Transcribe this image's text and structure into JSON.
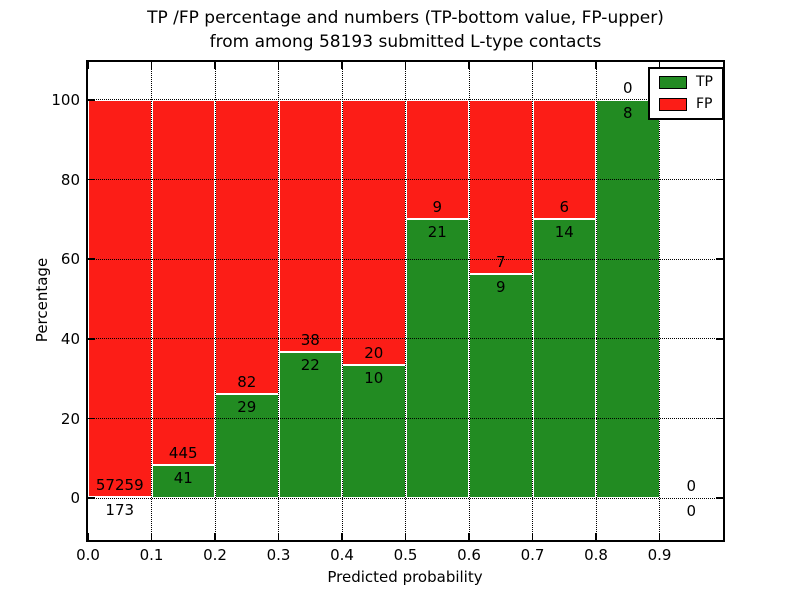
{
  "title": {
    "line1": "TP /FP percentage and numbers (TP-bottom value, FP-upper)",
    "line2": "from among 58193 submitted L-type contacts"
  },
  "axes": {
    "xlabel": "Predicted probability",
    "ylabel": "Percentage",
    "x_ticks": [
      "0.0",
      "0.1",
      "0.2",
      "0.3",
      "0.4",
      "0.5",
      "0.6",
      "0.7",
      "0.8",
      "0.9"
    ],
    "y_ticks": [
      "0",
      "20",
      "40",
      "60",
      "80",
      "100"
    ],
    "xlim": [
      0,
      1.0
    ],
    "ylim": [
      -10.5,
      109.5
    ],
    "grid": "dotted"
  },
  "legend": {
    "items": [
      {
        "label": "TP",
        "color": "#228b22"
      },
      {
        "label": "FP",
        "color": "#fc1d17"
      }
    ],
    "position": "upper-right"
  },
  "colors": {
    "tp": "#228b22",
    "fp": "#fc1d17",
    "background": "#ffffff",
    "text": "#000000",
    "grid": "#000000",
    "bar_edge": "#ffffff"
  },
  "chart_data": {
    "type": "bar",
    "stacked": true,
    "normalized_to_percent": true,
    "title": "TP /FP percentage and numbers (TP-bottom value, FP-upper) from among 58193 submitted L-type contacts",
    "xlabel": "Predicted probability",
    "ylabel": "Percentage",
    "total_submitted": 58193,
    "bin_width": 0.1,
    "categories": [
      "0.0-0.1",
      "0.1-0.2",
      "0.2-0.3",
      "0.3-0.4",
      "0.4-0.5",
      "0.5-0.6",
      "0.6-0.7",
      "0.7-0.8",
      "0.8-0.9",
      "0.9-1.0"
    ],
    "bins": [
      {
        "x0": 0.0,
        "tp": 173,
        "fp": 57259,
        "tp_pct": 0.3
      },
      {
        "x0": 0.1,
        "tp": 41,
        "fp": 445,
        "tp_pct": 8.4
      },
      {
        "x0": 0.2,
        "tp": 29,
        "fp": 82,
        "tp_pct": 26.1
      },
      {
        "x0": 0.3,
        "tp": 22,
        "fp": 38,
        "tp_pct": 36.7
      },
      {
        "x0": 0.4,
        "tp": 10,
        "fp": 20,
        "tp_pct": 33.3
      },
      {
        "x0": 0.5,
        "tp": 21,
        "fp": 9,
        "tp_pct": 70.0
      },
      {
        "x0": 0.6,
        "tp": 9,
        "fp": 7,
        "tp_pct": 56.3
      },
      {
        "x0": 0.7,
        "tp": 14,
        "fp": 6,
        "tp_pct": 70.0
      },
      {
        "x0": 0.8,
        "tp": 8,
        "fp": 0,
        "tp_pct": 100.0
      },
      {
        "x0": 0.9,
        "tp": 0,
        "fp": 0,
        "tp_pct": 0.0
      }
    ],
    "ylim": [
      0,
      100
    ],
    "legend_entries": [
      "TP",
      "FP"
    ]
  }
}
